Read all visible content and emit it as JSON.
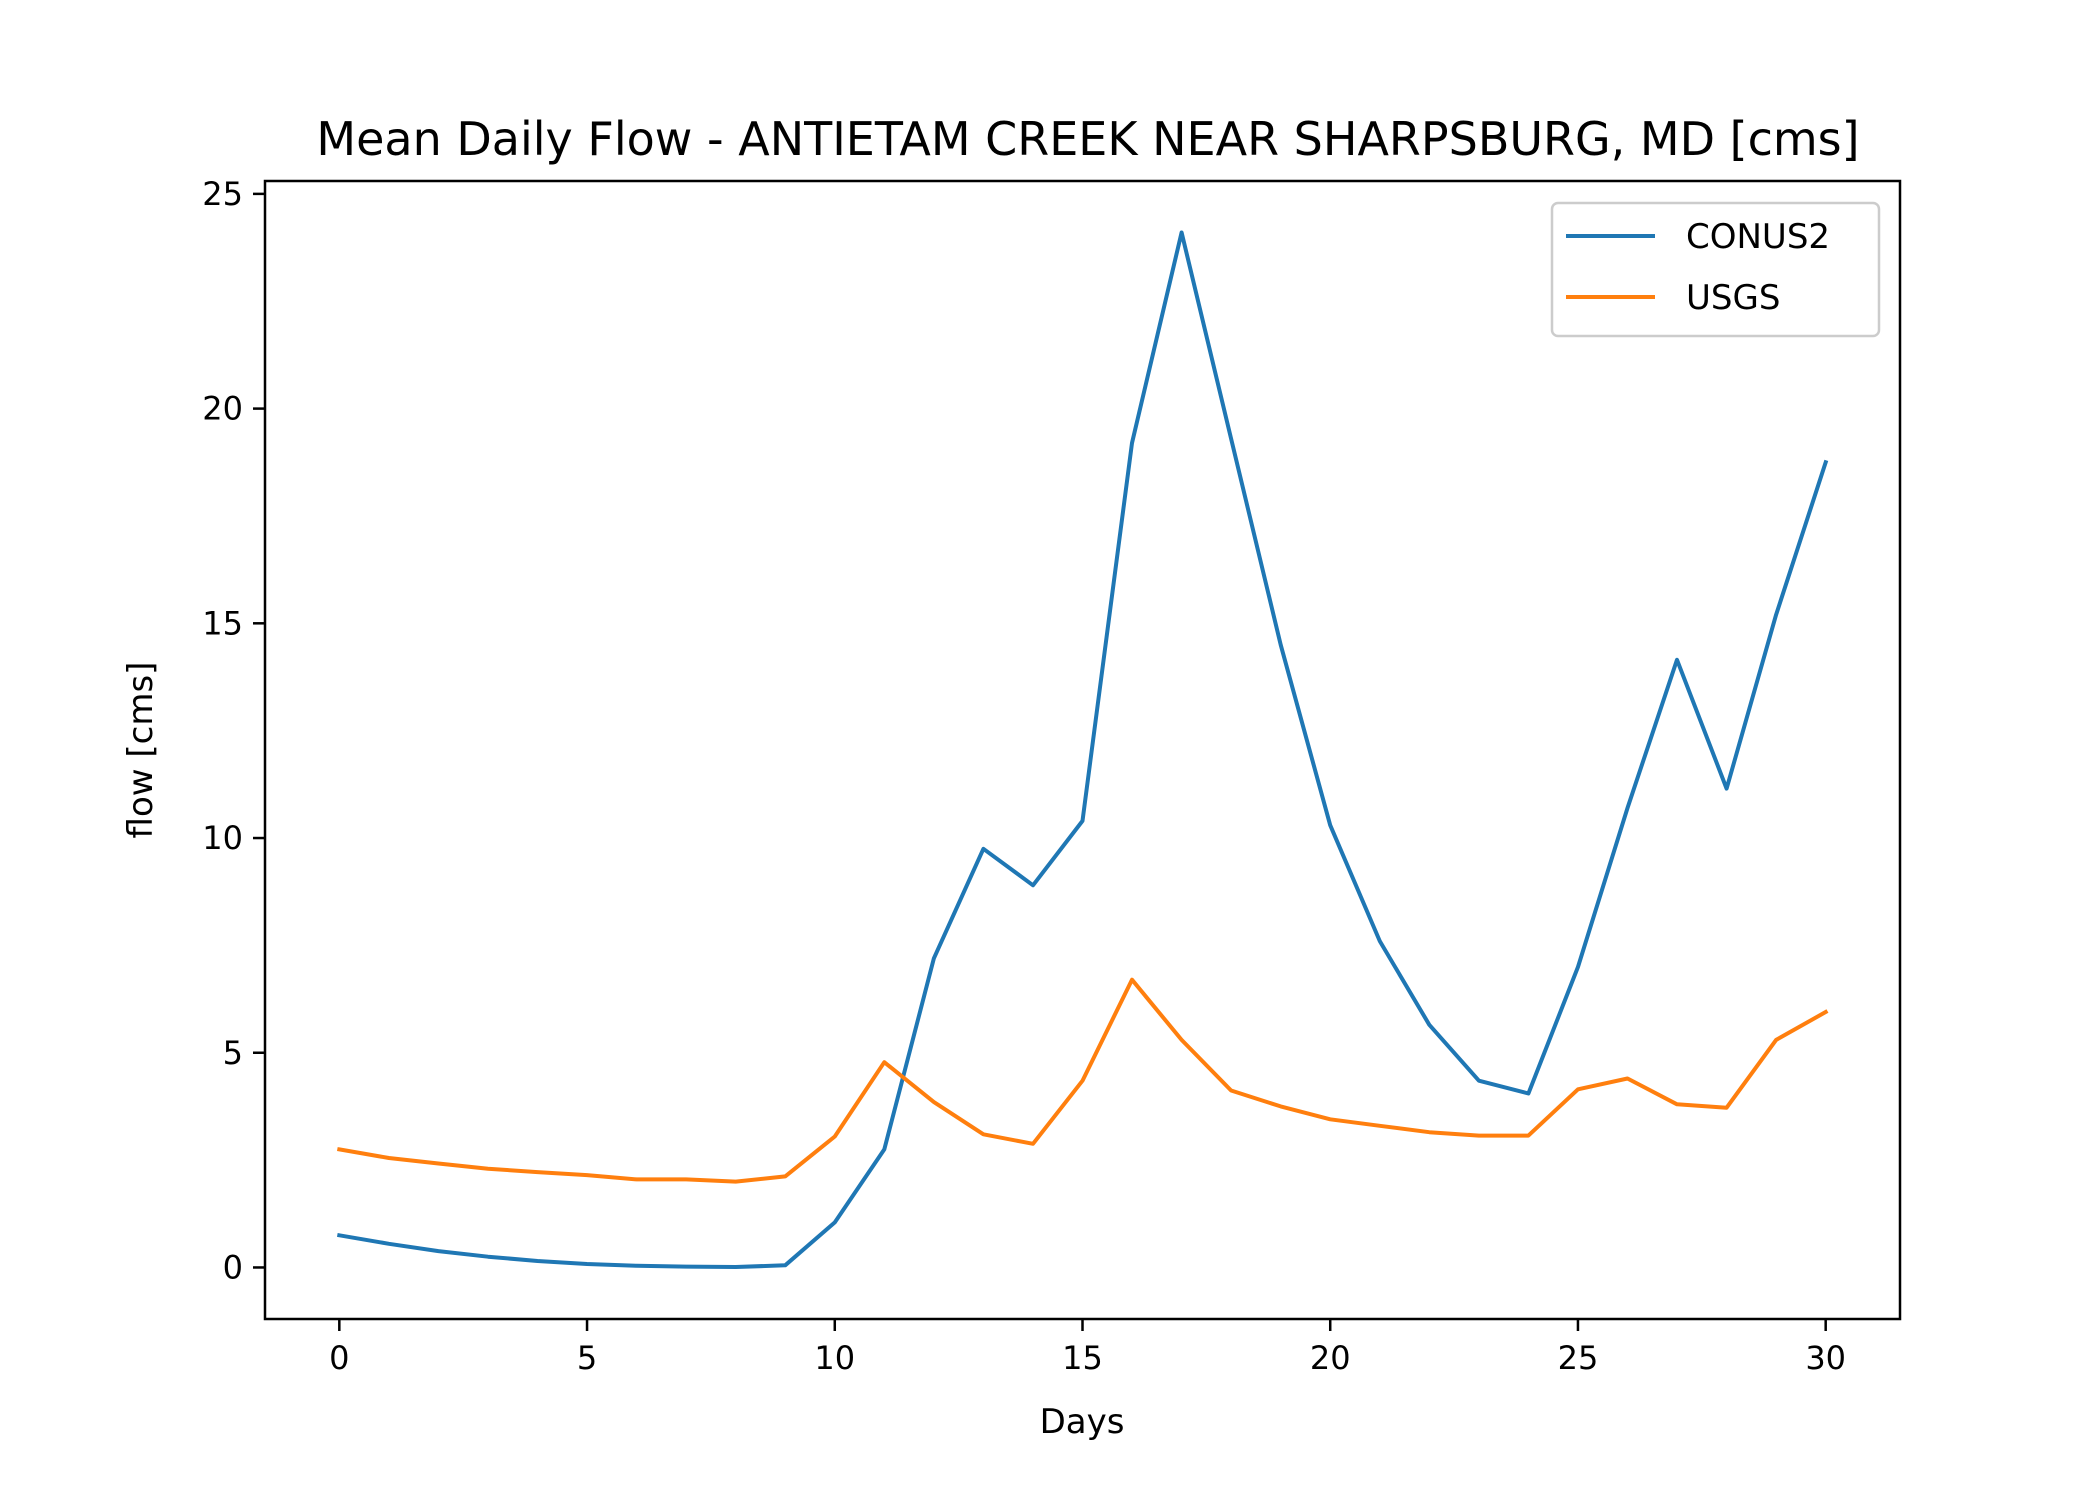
{
  "chart_data": {
    "type": "line",
    "title": "Mean Daily Flow - ANTIETAM CREEK NEAR SHARPSBURG, MD [cms]",
    "xlabel": "Days",
    "ylabel": "flow [cms]",
    "xlim": [
      -1.5,
      31.5
    ],
    "ylim": [
      -1.2,
      25.3
    ],
    "xticks": [
      0,
      5,
      10,
      15,
      20,
      25,
      30
    ],
    "yticks": [
      0,
      5,
      10,
      15,
      20,
      25
    ],
    "grid": false,
    "legend_position": "top-right",
    "x": [
      0,
      1,
      2,
      3,
      4,
      5,
      6,
      7,
      8,
      9,
      10,
      11,
      12,
      13,
      14,
      15,
      16,
      17,
      18,
      19,
      20,
      21,
      22,
      23,
      24,
      25,
      26,
      27,
      28,
      29,
      30
    ],
    "series": [
      {
        "name": "CONUS2",
        "color": "#1f77b4",
        "values": [
          0.75,
          0.55,
          0.38,
          0.25,
          0.15,
          0.08,
          0.04,
          0.02,
          0.01,
          0.05,
          1.05,
          2.75,
          7.2,
          9.75,
          8.9,
          10.4,
          19.2,
          24.1,
          19.3,
          14.5,
          10.3,
          7.6,
          5.65,
          4.35,
          4.05,
          7.0,
          10.7,
          14.15,
          11.15,
          15.2,
          18.75
        ]
      },
      {
        "name": "USGS",
        "color": "#ff7f0e",
        "values": [
          2.75,
          2.55,
          2.42,
          2.3,
          2.22,
          2.15,
          2.05,
          2.05,
          2.0,
          2.12,
          3.05,
          4.78,
          3.85,
          3.1,
          2.88,
          4.35,
          6.7,
          5.3,
          4.12,
          3.75,
          3.45,
          3.3,
          3.15,
          3.07,
          3.07,
          4.15,
          4.4,
          3.8,
          3.72,
          5.3,
          5.95
        ]
      }
    ]
  }
}
